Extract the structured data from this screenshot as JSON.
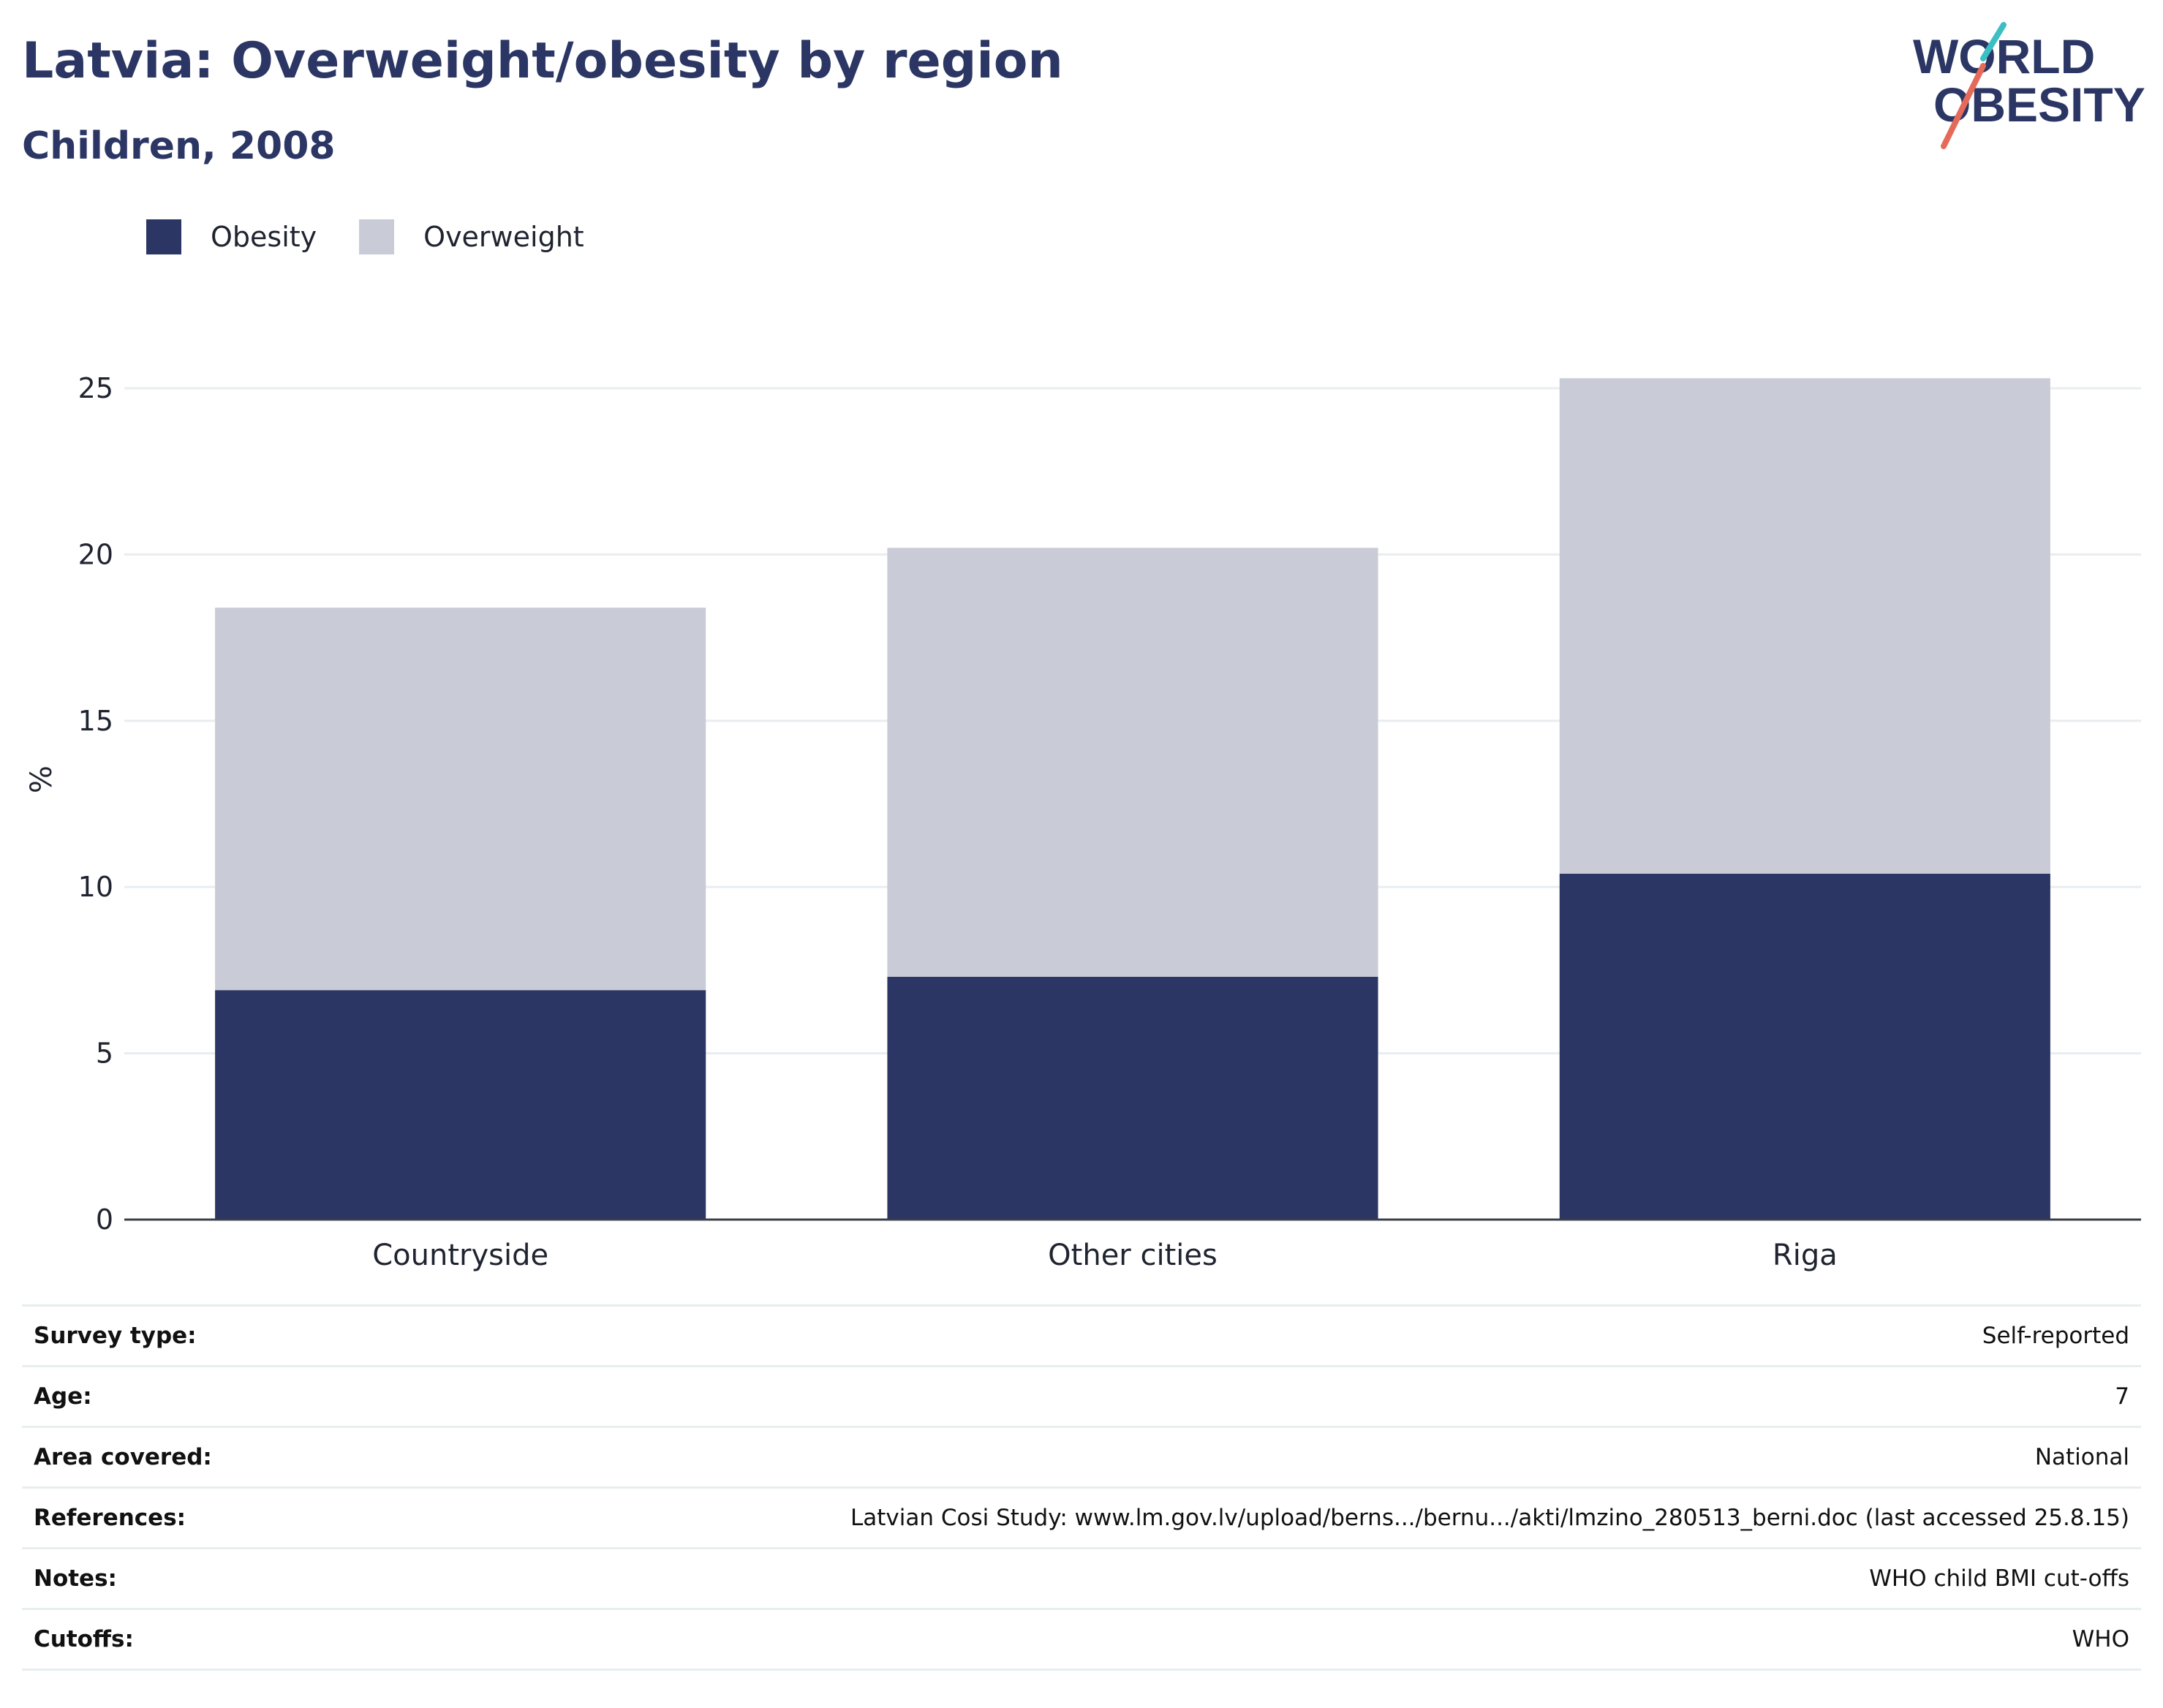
{
  "header": {
    "title": "Latvia: Overweight/obesity by region",
    "subtitle": "Children, 2008"
  },
  "logo": {
    "line1": "WORLD",
    "line2": "OBESITY",
    "accent_teal": "#3bbfc3",
    "accent_coral": "#e56a5a"
  },
  "legend": [
    {
      "label": "Obesity",
      "color": "#2b3664"
    },
    {
      "label": "Overweight",
      "color": "#c9cbd6"
    }
  ],
  "chart_data": {
    "type": "bar",
    "stacked": true,
    "categories": [
      "Countryside",
      "Other cities",
      "Riga"
    ],
    "series": [
      {
        "name": "Obesity",
        "color": "#2b3664",
        "values": [
          6.9,
          7.3,
          10.4
        ]
      },
      {
        "name": "Overweight",
        "color": "#c9cbd6",
        "values": [
          11.5,
          12.9,
          14.9
        ]
      }
    ],
    "totals": [
      18.4,
      20.2,
      25.3
    ],
    "ylabel": "%",
    "ylim": [
      0,
      27
    ],
    "yticks": [
      0,
      5,
      10,
      15,
      20,
      25
    ],
    "grid": true,
    "legend_position": "top-left"
  },
  "meta": [
    {
      "key": "Survey type:",
      "value": "Self-reported"
    },
    {
      "key": "Age:",
      "value": "7"
    },
    {
      "key": "Area covered:",
      "value": "National"
    },
    {
      "key": "References:",
      "value": "Latvian Cosi Study: www.lm.gov.lv/upload/berns.../bernu.../akti/lmzino_280513_berni.doc (last accessed 25.8.15)"
    },
    {
      "key": "Notes:",
      "value": "WHO child BMI cut-offs"
    },
    {
      "key": "Cutoffs:",
      "value": "WHO"
    }
  ]
}
